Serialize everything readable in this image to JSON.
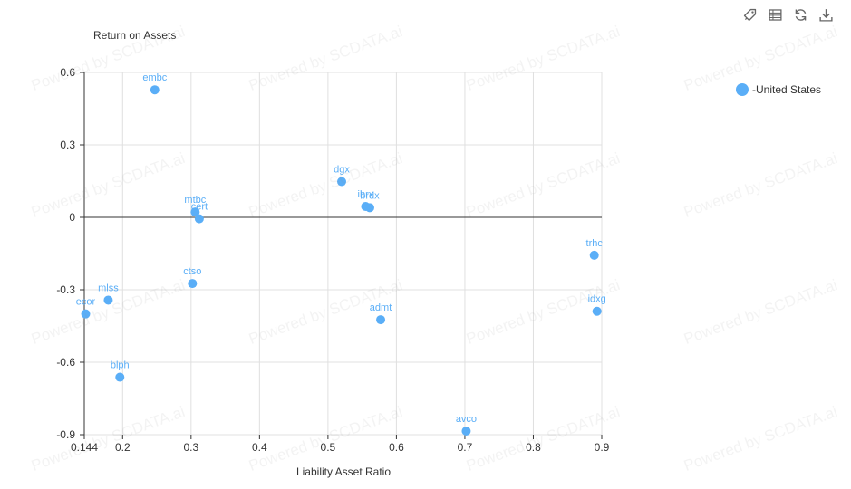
{
  "chart_data": {
    "type": "scatter",
    "xlabel": "Liability Asset Ratio",
    "ylabel": "Return on Assets",
    "xlim": [
      0.144,
      0.9
    ],
    "ylim": [
      -0.9,
      0.6
    ],
    "x_ticks": [
      0.144,
      0.2,
      0.3,
      0.4,
      0.5,
      0.6,
      0.7,
      0.8,
      0.9
    ],
    "x_tick_labels": [
      "0.144",
      "0.2",
      "0.3",
      "0.4",
      "0.5",
      "0.6",
      "0.7",
      "0.8",
      "0.9"
    ],
    "y_ticks": [
      0.6,
      0.3,
      0,
      -0.3,
      -0.6,
      -0.9
    ],
    "y_tick_labels": [
      "0.6",
      "0.3",
      "0",
      "-0.3",
      "-0.6",
      "-0.9"
    ],
    "grid": true,
    "legend_position": "top-right",
    "series": [
      {
        "name": "-United States",
        "color": "#5aaef7",
        "points": [
          {
            "label": "embc",
            "x": 0.247,
            "y": 0.528
          },
          {
            "label": "dgx",
            "x": 0.52,
            "y": 0.148
          },
          {
            "label": "brdx",
            "x": 0.561,
            "y": 0.04
          },
          {
            "label": "ibrx",
            "x": 0.555,
            "y": 0.045
          },
          {
            "label": "mtbc",
            "x": 0.306,
            "y": 0.022
          },
          {
            "label": "cert",
            "x": 0.312,
            "y": -0.006
          },
          {
            "label": "trhc",
            "x": 0.889,
            "y": -0.157
          },
          {
            "label": "ctso",
            "x": 0.302,
            "y": -0.274
          },
          {
            "label": "mlss",
            "x": 0.179,
            "y": -0.343
          },
          {
            "label": "idxg",
            "x": 0.893,
            "y": -0.389
          },
          {
            "label": "ecor",
            "x": 0.146,
            "y": -0.4
          },
          {
            "label": "admt",
            "x": 0.577,
            "y": -0.424
          },
          {
            "label": "blph",
            "x": 0.196,
            "y": -0.662
          },
          {
            "label": "avco",
            "x": 0.702,
            "y": -0.885
          }
        ]
      }
    ]
  },
  "watermark_text": "Powered by SCDATA.ai",
  "toolbar_icons": [
    "tag-icon",
    "table-view-icon",
    "refresh-icon",
    "download-icon"
  ]
}
